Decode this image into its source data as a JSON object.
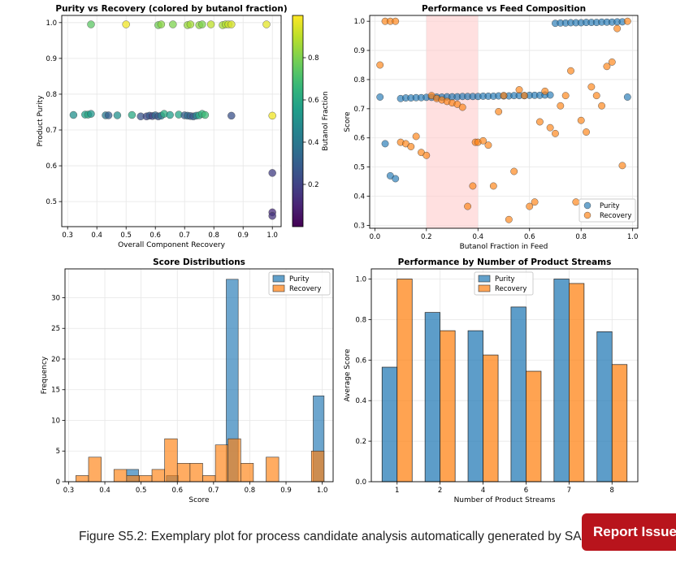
{
  "caption": "Figure S5.2: Exemplary plot for process candidate analysis automatically generated by SAC",
  "report_button": "Report Issue",
  "chart_data": [
    {
      "type": "scatter",
      "title": "Purity vs Recovery (colored by butanol fraction)",
      "xlabel": "Overall Component Recovery",
      "ylabel": "Product Purity",
      "xlim": [
        0.28,
        1.03
      ],
      "ylim": [
        0.43,
        1.02
      ],
      "xticks": [
        "0.3",
        "0.4",
        "0.5",
        "0.6",
        "0.7",
        "0.8",
        "0.9",
        "1.0"
      ],
      "yticks": [
        "0.5",
        "0.6",
        "0.7",
        "0.8",
        "0.9",
        "1.0"
      ],
      "colorbar": {
        "label": "Butanol Fraction",
        "range": [
          0.0,
          1.0
        ],
        "ticks": [
          "0.2",
          "0.4",
          "0.6",
          "0.8"
        ]
      },
      "points": [
        {
          "x": 0.32,
          "y": 0.742,
          "c": 0.5
        },
        {
          "x": 0.36,
          "y": 0.743,
          "c": 0.56
        },
        {
          "x": 0.37,
          "y": 0.743,
          "c": 0.6
        },
        {
          "x": 0.38,
          "y": 0.745,
          "c": 0.52
        },
        {
          "x": 0.43,
          "y": 0.741,
          "c": 0.4
        },
        {
          "x": 0.44,
          "y": 0.741,
          "c": 0.3
        },
        {
          "x": 0.47,
          "y": 0.741,
          "c": 0.5
        },
        {
          "x": 0.52,
          "y": 0.742,
          "c": 0.6
        },
        {
          "x": 0.55,
          "y": 0.738,
          "c": 0.26
        },
        {
          "x": 0.57,
          "y": 0.738,
          "c": 0.22
        },
        {
          "x": 0.58,
          "y": 0.74,
          "c": 0.28
        },
        {
          "x": 0.59,
          "y": 0.739,
          "c": 0.2
        },
        {
          "x": 0.6,
          "y": 0.741,
          "c": 0.34
        },
        {
          "x": 0.61,
          "y": 0.738,
          "c": 0.26
        },
        {
          "x": 0.62,
          "y": 0.74,
          "c": 0.4
        },
        {
          "x": 0.63,
          "y": 0.745,
          "c": 0.62
        },
        {
          "x": 0.65,
          "y": 0.742,
          "c": 0.55
        },
        {
          "x": 0.68,
          "y": 0.743,
          "c": 0.58
        },
        {
          "x": 0.7,
          "y": 0.741,
          "c": 0.3
        },
        {
          "x": 0.71,
          "y": 0.74,
          "c": 0.35
        },
        {
          "x": 0.72,
          "y": 0.739,
          "c": 0.3
        },
        {
          "x": 0.73,
          "y": 0.738,
          "c": 0.28
        },
        {
          "x": 0.74,
          "y": 0.74,
          "c": 0.45
        },
        {
          "x": 0.75,
          "y": 0.741,
          "c": 0.6
        },
        {
          "x": 0.76,
          "y": 0.745,
          "c": 0.65
        },
        {
          "x": 0.77,
          "y": 0.742,
          "c": 0.68
        },
        {
          "x": 0.86,
          "y": 0.74,
          "c": 0.25
        },
        {
          "x": 1.0,
          "y": 0.74,
          "c": 0.98
        },
        {
          "x": 1.0,
          "y": 0.58,
          "c": 0.18
        },
        {
          "x": 1.0,
          "y": 0.47,
          "c": 0.12
        },
        {
          "x": 1.0,
          "y": 0.46,
          "c": 0.15
        },
        {
          "x": 0.38,
          "y": 0.995,
          "c": 0.74
        },
        {
          "x": 0.5,
          "y": 0.995,
          "c": 0.98
        },
        {
          "x": 0.61,
          "y": 0.993,
          "c": 0.78
        },
        {
          "x": 0.62,
          "y": 0.995,
          "c": 0.82
        },
        {
          "x": 0.66,
          "y": 0.995,
          "c": 0.8
        },
        {
          "x": 0.71,
          "y": 0.993,
          "c": 0.84
        },
        {
          "x": 0.72,
          "y": 0.995,
          "c": 0.86
        },
        {
          "x": 0.75,
          "y": 0.993,
          "c": 0.83
        },
        {
          "x": 0.76,
          "y": 0.995,
          "c": 0.8
        },
        {
          "x": 0.79,
          "y": 0.995,
          "c": 0.9
        },
        {
          "x": 0.83,
          "y": 0.993,
          "c": 0.86
        },
        {
          "x": 0.84,
          "y": 0.995,
          "c": 0.88
        },
        {
          "x": 0.85,
          "y": 0.995,
          "c": 0.92
        },
        {
          "x": 0.86,
          "y": 0.995,
          "c": 0.94
        },
        {
          "x": 0.98,
          "y": 0.995,
          "c": 0.96
        }
      ]
    },
    {
      "type": "scatter",
      "title": "Performance vs Feed Composition",
      "xlabel": "Butanol Fraction in Feed",
      "ylabel": "Score",
      "xlim": [
        -0.02,
        1.02
      ],
      "ylim": [
        0.29,
        1.02
      ],
      "xticks": [
        "0.0",
        "0.2",
        "0.4",
        "0.6",
        "0.8",
        "1.0"
      ],
      "yticks": [
        "0.3",
        "0.4",
        "0.5",
        "0.6",
        "0.7",
        "0.8",
        "0.9",
        "1.0"
      ],
      "shaded_region": [
        0.2,
        0.4
      ],
      "legend": [
        "Purity",
        "Recovery"
      ],
      "legend_position": "lower-right",
      "series": [
        {
          "name": "Purity",
          "color": "#1f77b4",
          "points": [
            [
              0.02,
              0.74
            ],
            [
              0.04,
              0.58
            ],
            [
              0.06,
              0.47
            ],
            [
              0.08,
              0.46
            ],
            [
              0.1,
              0.735
            ],
            [
              0.12,
              0.737
            ],
            [
              0.14,
              0.737
            ],
            [
              0.16,
              0.738
            ],
            [
              0.18,
              0.738
            ],
            [
              0.2,
              0.739
            ],
            [
              0.22,
              0.739
            ],
            [
              0.24,
              0.74
            ],
            [
              0.26,
              0.74
            ],
            [
              0.28,
              0.741
            ],
            [
              0.3,
              0.741
            ],
            [
              0.32,
              0.741
            ],
            [
              0.34,
              0.742
            ],
            [
              0.36,
              0.742
            ],
            [
              0.38,
              0.742
            ],
            [
              0.4,
              0.742
            ],
            [
              0.42,
              0.743
            ],
            [
              0.44,
              0.743
            ],
            [
              0.46,
              0.743
            ],
            [
              0.48,
              0.744
            ],
            [
              0.5,
              0.744
            ],
            [
              0.52,
              0.744
            ],
            [
              0.54,
              0.745
            ],
            [
              0.56,
              0.745
            ],
            [
              0.58,
              0.745
            ],
            [
              0.6,
              0.746
            ],
            [
              0.62,
              0.746
            ],
            [
              0.64,
              0.746
            ],
            [
              0.66,
              0.747
            ],
            [
              0.68,
              0.747
            ],
            [
              0.7,
              0.993
            ],
            [
              0.72,
              0.994
            ],
            [
              0.74,
              0.994
            ],
            [
              0.76,
              0.995
            ],
            [
              0.78,
              0.995
            ],
            [
              0.8,
              0.995
            ],
            [
              0.82,
              0.996
            ],
            [
              0.84,
              0.996
            ],
            [
              0.86,
              0.996
            ],
            [
              0.88,
              0.997
            ],
            [
              0.9,
              0.997
            ],
            [
              0.92,
              0.997
            ],
            [
              0.94,
              0.998
            ],
            [
              0.96,
              0.998
            ],
            [
              0.98,
              0.74
            ]
          ]
        },
        {
          "name": "Recovery",
          "color": "#ff7f0e",
          "points": [
            [
              0.02,
              0.85
            ],
            [
              0.04,
              1.0
            ],
            [
              0.06,
              1.0
            ],
            [
              0.08,
              1.0
            ],
            [
              0.1,
              0.585
            ],
            [
              0.12,
              0.58
            ],
            [
              0.14,
              0.57
            ],
            [
              0.16,
              0.605
            ],
            [
              0.18,
              0.55
            ],
            [
              0.2,
              0.54
            ],
            [
              0.22,
              0.745
            ],
            [
              0.24,
              0.735
            ],
            [
              0.26,
              0.73
            ],
            [
              0.28,
              0.725
            ],
            [
              0.3,
              0.72
            ],
            [
              0.32,
              0.715
            ],
            [
              0.34,
              0.705
            ],
            [
              0.36,
              0.365
            ],
            [
              0.38,
              0.435
            ],
            [
              0.39,
              0.585
            ],
            [
              0.4,
              0.585
            ],
            [
              0.42,
              0.59
            ],
            [
              0.44,
              0.575
            ],
            [
              0.46,
              0.435
            ],
            [
              0.48,
              0.69
            ],
            [
              0.5,
              0.745
            ],
            [
              0.52,
              0.32
            ],
            [
              0.54,
              0.485
            ],
            [
              0.56,
              0.765
            ],
            [
              0.58,
              0.745
            ],
            [
              0.6,
              0.365
            ],
            [
              0.62,
              0.38
            ],
            [
              0.64,
              0.655
            ],
            [
              0.66,
              0.76
            ],
            [
              0.68,
              0.635
            ],
            [
              0.7,
              0.615
            ],
            [
              0.72,
              0.71
            ],
            [
              0.74,
              0.745
            ],
            [
              0.76,
              0.83
            ],
            [
              0.78,
              0.38
            ],
            [
              0.8,
              0.66
            ],
            [
              0.82,
              0.62
            ],
            [
              0.84,
              0.775
            ],
            [
              0.86,
              0.745
            ],
            [
              0.88,
              0.71
            ],
            [
              0.9,
              0.845
            ],
            [
              0.92,
              0.86
            ],
            [
              0.94,
              0.975
            ],
            [
              0.96,
              0.505
            ],
            [
              0.98,
              1.0
            ]
          ]
        }
      ]
    },
    {
      "type": "histogram",
      "title": "Score Distributions",
      "xlabel": "Score",
      "ylabel": "Frequency",
      "xlim": [
        0.29,
        1.03
      ],
      "ylim": [
        0,
        34.7
      ],
      "xticks": [
        "0.3",
        "0.4",
        "0.5",
        "0.6",
        "0.7",
        "0.8",
        "0.9",
        "1.0"
      ],
      "yticks": [
        "0",
        "5",
        "10",
        "15",
        "20",
        "25",
        "30"
      ],
      "legend": [
        "Purity",
        "Recovery"
      ],
      "legend_position": "top-right",
      "series": [
        {
          "name": "Purity",
          "color": "#1f77b4",
          "bins": [
            {
              "start": 0.46,
              "end": 0.493,
              "count": 2
            },
            {
              "start": 0.57,
              "end": 0.603,
              "count": 1
            },
            {
              "start": 0.735,
              "end": 0.768,
              "count": 33
            },
            {
              "start": 0.975,
              "end": 1.005,
              "count": 14
            }
          ]
        },
        {
          "name": "Recovery",
          "color": "#ff7f0e",
          "bins": [
            {
              "start": 0.32,
              "end": 0.355,
              "count": 1
            },
            {
              "start": 0.355,
              "end": 0.39,
              "count": 4
            },
            {
              "start": 0.425,
              "end": 0.46,
              "count": 2
            },
            {
              "start": 0.46,
              "end": 0.495,
              "count": 1
            },
            {
              "start": 0.495,
              "end": 0.53,
              "count": 1
            },
            {
              "start": 0.53,
              "end": 0.565,
              "count": 2
            },
            {
              "start": 0.565,
              "end": 0.6,
              "count": 7
            },
            {
              "start": 0.6,
              "end": 0.635,
              "count": 3
            },
            {
              "start": 0.635,
              "end": 0.67,
              "count": 3
            },
            {
              "start": 0.67,
              "end": 0.705,
              "count": 1
            },
            {
              "start": 0.705,
              "end": 0.74,
              "count": 6
            },
            {
              "start": 0.74,
              "end": 0.775,
              "count": 7
            },
            {
              "start": 0.775,
              "end": 0.81,
              "count": 3
            },
            {
              "start": 0.845,
              "end": 0.88,
              "count": 4
            },
            {
              "start": 0.97,
              "end": 1.005,
              "count": 5
            }
          ]
        }
      ]
    },
    {
      "type": "bar",
      "title": "Performance by Number of Product Streams",
      "xlabel": "Number of Product Streams",
      "ylabel": "Average Score",
      "ylim": [
        0,
        1.05
      ],
      "yticks": [
        "0.0",
        "0.2",
        "0.4",
        "0.6",
        "0.8",
        "1.0"
      ],
      "categories": [
        "1",
        "2",
        "4",
        "6",
        "7",
        "8"
      ],
      "legend": [
        "Purity",
        "Recovery"
      ],
      "legend_position": "top-center",
      "series": [
        {
          "name": "Purity",
          "color": "#1f77b4",
          "values": [
            0.565,
            0.835,
            0.745,
            0.862,
            1.0,
            0.74
          ]
        },
        {
          "name": "Recovery",
          "color": "#ff7f0e",
          "values": [
            1.0,
            0.745,
            0.625,
            0.545,
            0.978,
            0.578
          ]
        }
      ]
    }
  ]
}
